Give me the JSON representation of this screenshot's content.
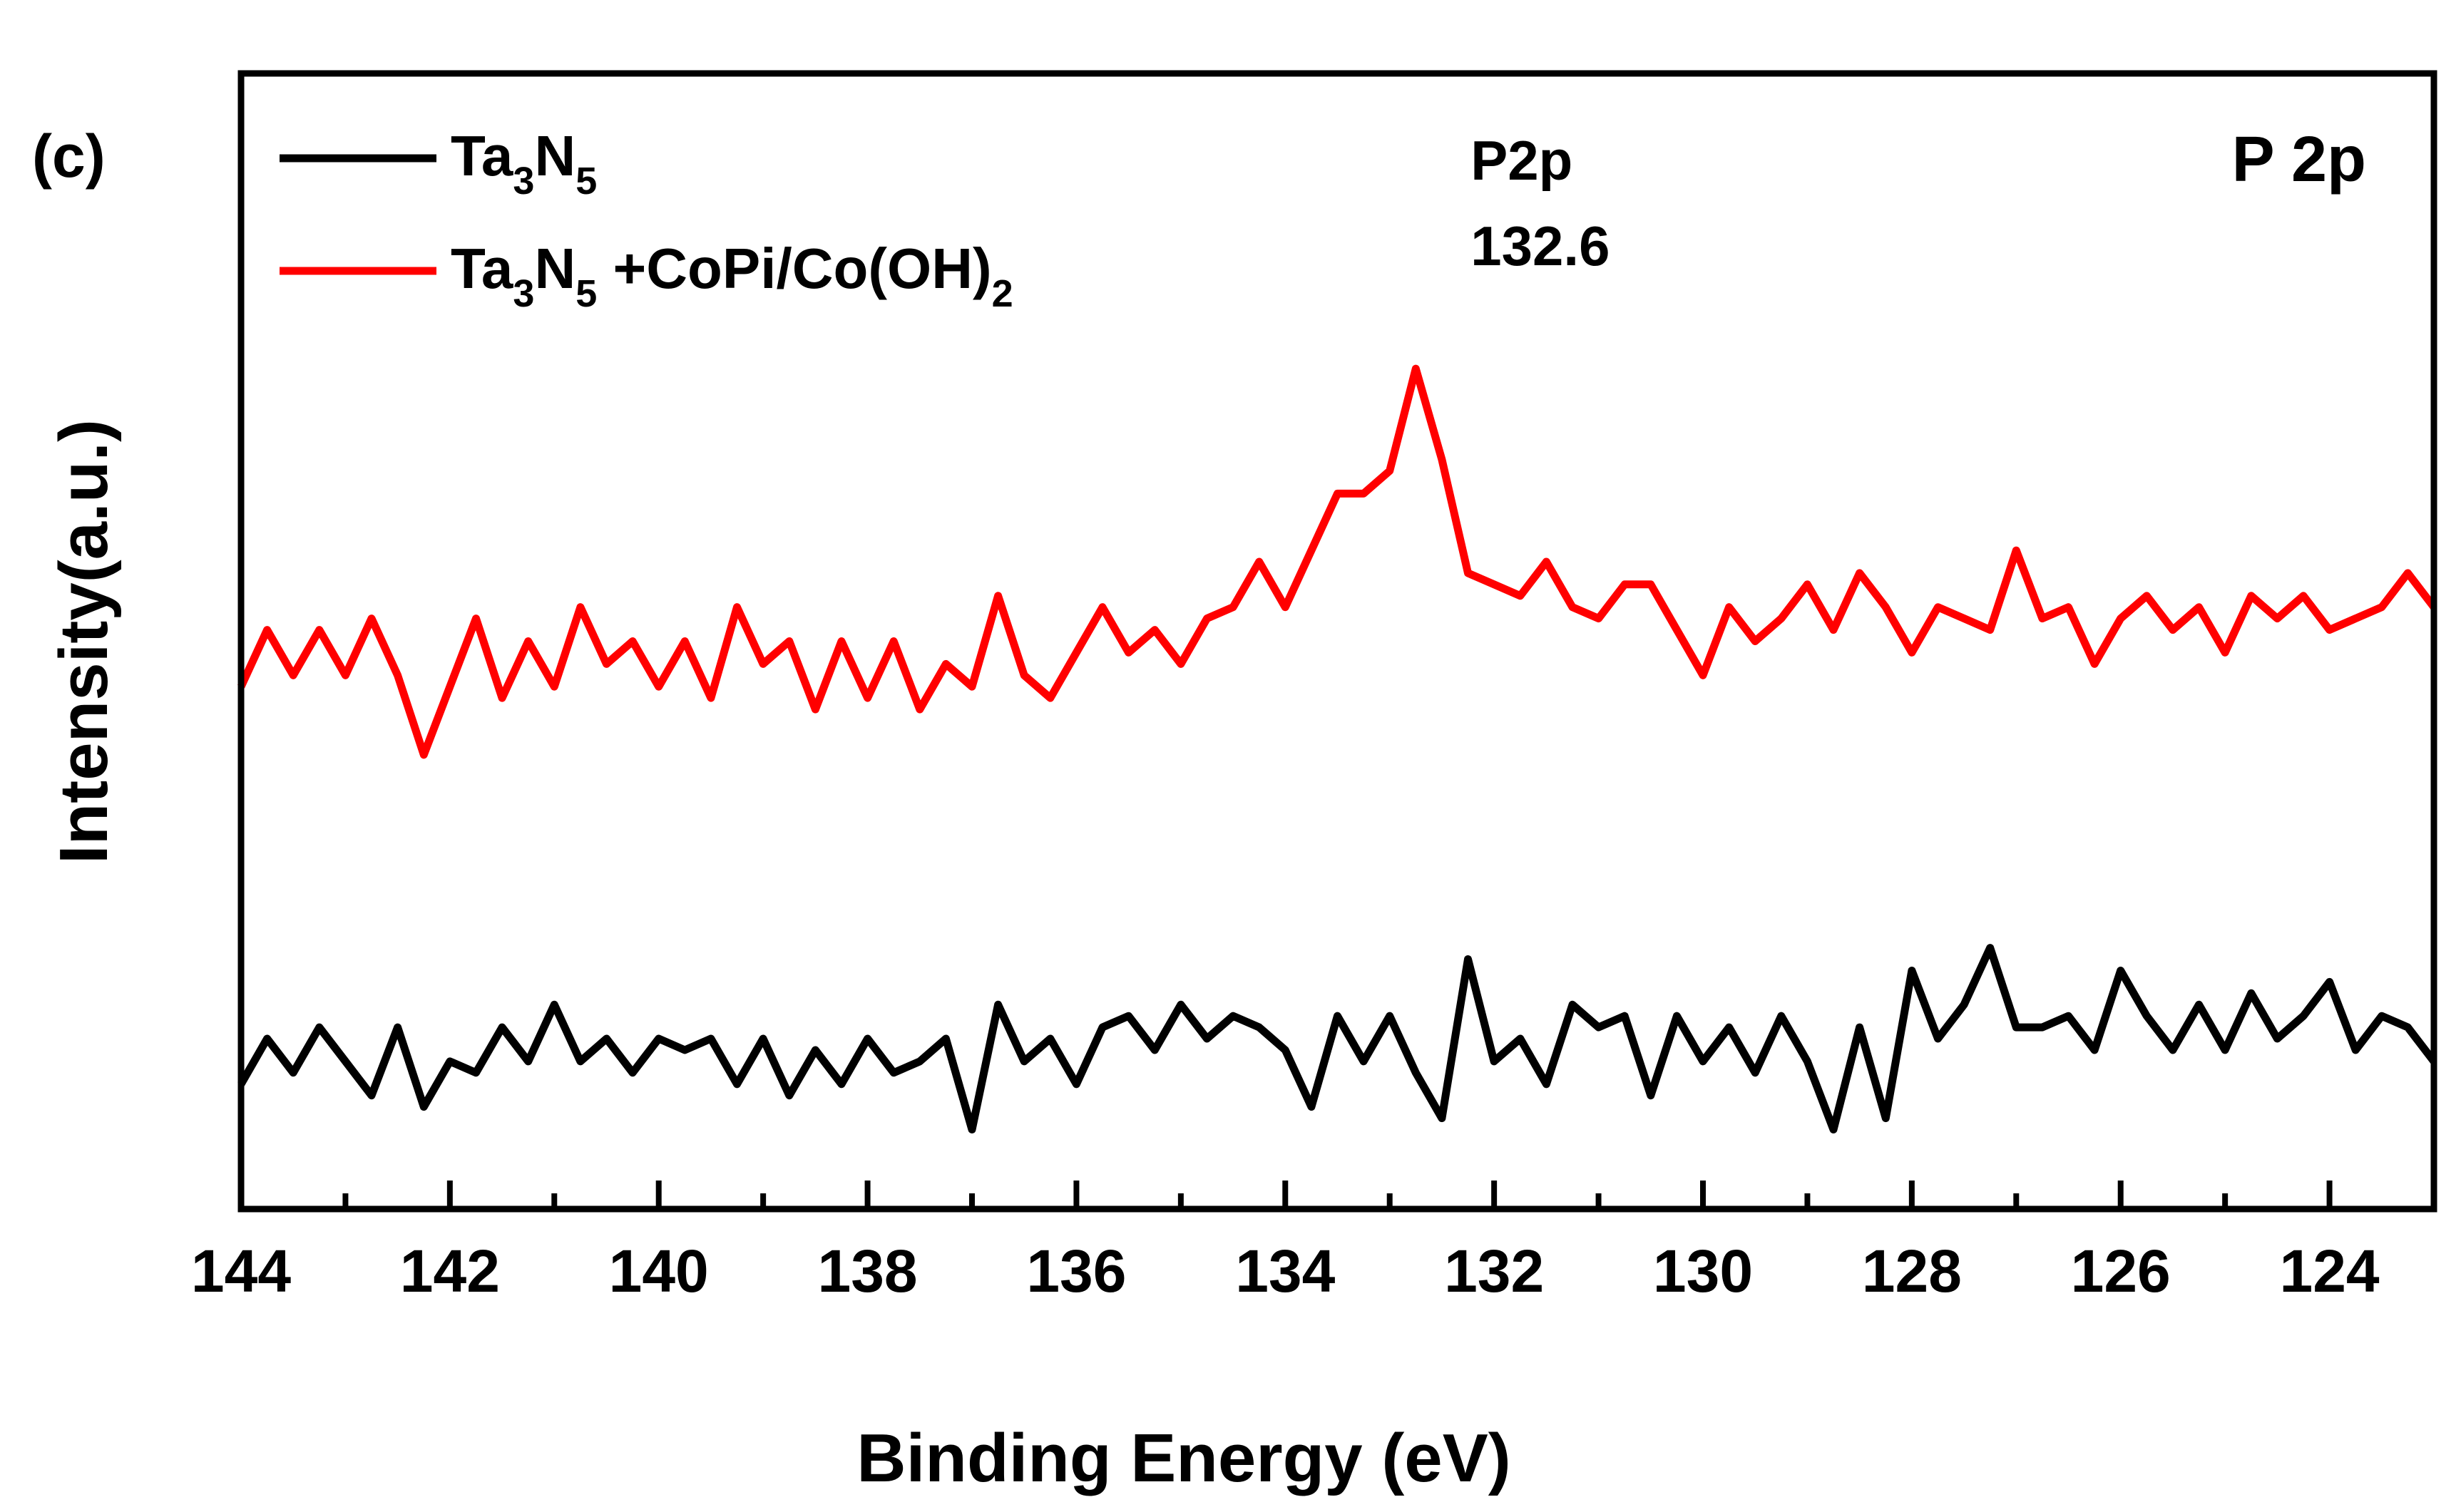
{
  "panel_label": "(c)",
  "element_label": "P 2p",
  "chart_data": {
    "type": "line",
    "title": "",
    "xlabel": "Binding Energy (eV)",
    "ylabel": "Intensity(a.u.)",
    "xlim": [
      144,
      123
    ],
    "ylim": [
      0,
      100
    ],
    "x_reversed": true,
    "y_ticks_shown": false,
    "x_ticks": [
      144,
      142,
      140,
      138,
      136,
      134,
      132,
      130,
      128,
      126,
      124
    ],
    "x_tick_labels": [
      "144",
      "142",
      "140",
      "138",
      "136",
      "134",
      "132",
      "130",
      "128",
      "126",
      "124"
    ],
    "x_minor_ticks": [
      143,
      141,
      139,
      137,
      135,
      133,
      131,
      129,
      127,
      125
    ],
    "legend": {
      "position": "top-left",
      "entries": [
        {
          "series": "Ta3N5",
          "parts": [
            [
              "Ta",
              ""
            ],
            [
              "3",
              "sub"
            ],
            [
              "N",
              ""
            ],
            [
              "5",
              "sub"
            ]
          ]
        },
        {
          "series": "Ta3N5 +CoPi/Co(OH)2",
          "parts": [
            [
              "Ta",
              ""
            ],
            [
              "3",
              "sub"
            ],
            [
              "N",
              ""
            ],
            [
              "5",
              "sub"
            ],
            [
              " +CoPi/Co(OH)",
              ""
            ],
            [
              "2",
              "sub"
            ]
          ]
        }
      ]
    },
    "annotations": [
      {
        "text": "P2p",
        "x": 132.6
      },
      {
        "text": "132.6",
        "x": 132.6
      }
    ],
    "series": [
      {
        "name": "Ta3N5",
        "color": "#000000",
        "x": [
          144.0,
          143.75,
          143.5,
          143.25,
          143.0,
          142.75,
          142.5,
          142.25,
          142.0,
          141.75,
          141.5,
          141.25,
          141.0,
          140.75,
          140.5,
          140.25,
          140.0,
          139.75,
          139.5,
          139.25,
          139.0,
          138.75,
          138.5,
          138.25,
          138.0,
          137.75,
          137.5,
          137.25,
          137.0,
          136.75,
          136.5,
          136.25,
          136.0,
          135.75,
          135.5,
          135.25,
          135.0,
          134.75,
          134.5,
          134.25,
          134.0,
          133.75,
          133.5,
          133.25,
          133.0,
          132.75,
          132.5,
          132.25,
          132.0,
          131.75,
          131.5,
          131.25,
          131.0,
          130.75,
          130.5,
          130.25,
          130.0,
          129.75,
          129.5,
          129.25,
          129.0,
          128.75,
          128.5,
          128.25,
          128.0,
          127.75,
          127.5,
          127.25,
          127.0,
          126.75,
          126.5,
          126.25,
          126.0,
          125.75,
          125.5,
          125.25,
          125.0,
          124.75,
          124.5,
          124.25,
          124.0,
          123.75,
          123.5,
          123.25,
          123.0
        ],
        "y": [
          11,
          15,
          12,
          16,
          13,
          10,
          16,
          9,
          13,
          12,
          16,
          13,
          18,
          13,
          15,
          12,
          15,
          14,
          15,
          11,
          15,
          10,
          14,
          11,
          15,
          12,
          13,
          15,
          7,
          18,
          13,
          15,
          11,
          16,
          17,
          14,
          18,
          15,
          17,
          16,
          14,
          9,
          17,
          13,
          17,
          12,
          8,
          22,
          13,
          15,
          11,
          18,
          16,
          17,
          10,
          17,
          13,
          16,
          12,
          17,
          13,
          7,
          16,
          8,
          21,
          15,
          18,
          23,
          16,
          16,
          17,
          14,
          21,
          17,
          14,
          18,
          14,
          19,
          15,
          17,
          20,
          14,
          17,
          16,
          13
        ]
      },
      {
        "name": "Ta3N5 +CoPi/Co(OH)2",
        "color": "#ff0000",
        "x": [
          144.0,
          143.75,
          143.5,
          143.25,
          143.0,
          142.75,
          142.5,
          142.25,
          142.0,
          141.75,
          141.5,
          141.25,
          141.0,
          140.75,
          140.5,
          140.25,
          140.0,
          139.75,
          139.5,
          139.25,
          139.0,
          138.75,
          138.5,
          138.25,
          138.0,
          137.75,
          137.5,
          137.25,
          137.0,
          136.75,
          136.5,
          136.25,
          136.0,
          135.75,
          135.5,
          135.25,
          135.0,
          134.75,
          134.5,
          134.25,
          134.0,
          133.75,
          133.5,
          133.25,
          133.0,
          132.75,
          132.5,
          132.25,
          132.0,
          131.75,
          131.5,
          131.25,
          131.0,
          130.75,
          130.5,
          130.25,
          130.0,
          129.75,
          129.5,
          129.25,
          129.0,
          128.75,
          128.5,
          128.25,
          128.0,
          127.75,
          127.5,
          127.25,
          127.0,
          126.75,
          126.5,
          126.25,
          126.0,
          125.75,
          125.5,
          125.25,
          125.0,
          124.75,
          124.5,
          124.25,
          124.0,
          123.75,
          123.5,
          123.25,
          123.0
        ],
        "y": [
          46,
          51,
          47,
          51,
          47,
          52,
          47,
          40,
          46,
          52,
          45,
          50,
          46,
          53,
          48,
          50,
          46,
          50,
          45,
          53,
          48,
          50,
          44,
          50,
          45,
          50,
          44,
          48,
          46,
          54,
          47,
          45,
          49,
          53,
          49,
          51,
          48,
          52,
          53,
          57,
          53,
          58,
          63,
          63,
          65,
          74,
          66,
          56,
          55,
          54,
          57,
          53,
          52,
          55,
          55,
          51,
          47,
          53,
          50,
          52,
          55,
          51,
          56,
          53,
          49,
          53,
          52,
          51,
          58,
          52,
          53,
          48,
          52,
          54,
          51,
          53,
          49,
          54,
          52,
          54,
          51,
          52,
          53,
          56,
          53
        ]
      }
    ]
  }
}
